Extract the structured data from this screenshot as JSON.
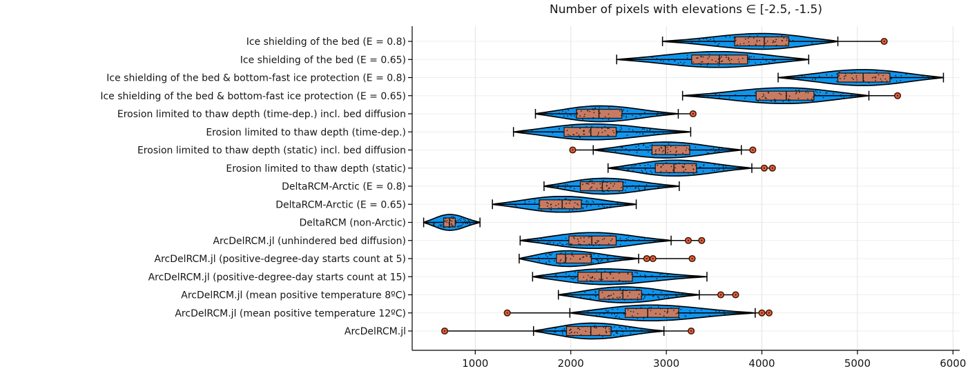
{
  "chart_data": {
    "type": "violin",
    "orientation": "horizontal",
    "title": "Number of pixels with elevations ∈ [-2.5, -1.5)",
    "xlabel": "",
    "ylabel": "",
    "xlim": [
      340,
      6070
    ],
    "xticks": [
      1000,
      2000,
      3000,
      4000,
      5000,
      6000
    ],
    "grid": true,
    "legend": "none",
    "colors": {
      "violin_fill": "#1095EE",
      "violin_stroke": "#000000",
      "box_fill": "#C97B62",
      "box_stroke": "#1a1a1a",
      "outlier_fill": "#E8603C",
      "outlier_stroke": "#3a1505",
      "dot_color": "#0a1a24",
      "grid_v": "#e2e2e2",
      "grid_h": "#ededed",
      "axis": "#000000",
      "text": "#151515"
    },
    "rows": [
      {
        "label": "Ice shielding of the bed (E = 0.8)",
        "whisker_low": 2960,
        "q1": 3715,
        "median": 4025,
        "q3": 4280,
        "whisker_high": 4795,
        "outliers": [
          5280
        ]
      },
      {
        "label": "Ice shielding of the bed (E = 0.65)",
        "whisker_low": 2480,
        "q1": 3265,
        "median": 3555,
        "q3": 3850,
        "whisker_high": 4490,
        "outliers": []
      },
      {
        "label": "Ice shielding of the bed & bottom-fast ice protection (E = 0.8)",
        "whisker_low": 4170,
        "q1": 4795,
        "median": 5060,
        "q3": 5340,
        "whisker_high": 5900,
        "outliers": []
      },
      {
        "label": "Ice shielding of the bed & bottom-fast ice protection (E = 0.65)",
        "whisker_low": 3170,
        "q1": 3940,
        "median": 4255,
        "q3": 4545,
        "whisker_high": 5120,
        "outliers": [
          5420
        ]
      },
      {
        "label": "Erosion limited to thaw depth (time-dep.) incl. bed diffusion",
        "whisker_low": 1630,
        "q1": 2060,
        "median": 2295,
        "q3": 2535,
        "whisker_high": 3125,
        "outliers": [
          3280
        ]
      },
      {
        "label": "Erosion limited to thaw depth (time-dep.)",
        "whisker_low": 1400,
        "q1": 1930,
        "median": 2210,
        "q3": 2475,
        "whisker_high": 3255,
        "outliers": []
      },
      {
        "label": "Erosion limited to thaw depth (static) incl. bed diffusion",
        "whisker_low": 2235,
        "q1": 2850,
        "median": 2990,
        "q3": 3245,
        "whisker_high": 3785,
        "outliers": [
          2020,
          3905
        ]
      },
      {
        "label": "Erosion limited to thaw depth (static)",
        "whisker_low": 2390,
        "q1": 2885,
        "median": 3080,
        "q3": 3315,
        "whisker_high": 3895,
        "outliers": [
          4025,
          4110
        ]
      },
      {
        "label": "DeltaRCM-Arctic (E = 0.8)",
        "whisker_low": 1720,
        "q1": 2100,
        "median": 2330,
        "q3": 2545,
        "whisker_high": 3135,
        "outliers": []
      },
      {
        "label": "DeltaRCM-Arctic (E = 0.65)",
        "whisker_low": 1180,
        "q1": 1670,
        "median": 1910,
        "q3": 2110,
        "whisker_high": 2685,
        "outliers": []
      },
      {
        "label": "DeltaRCM (non-Arctic)",
        "whisker_low": 460,
        "q1": 670,
        "median": 730,
        "q3": 790,
        "whisker_high": 1050,
        "outliers": []
      },
      {
        "label": "ArcDelRCM.jl (unhindered bed diffusion)",
        "whisker_low": 1470,
        "q1": 1980,
        "median": 2220,
        "q3": 2475,
        "whisker_high": 3050,
        "outliers": [
          3230,
          3370
        ]
      },
      {
        "label": "ArcDelRCM.jl (positive-degree-day starts count at 5)",
        "whisker_low": 1460,
        "q1": 1850,
        "median": 1945,
        "q3": 2215,
        "whisker_high": 2710,
        "outliers": [
          2795,
          2860,
          3270
        ]
      },
      {
        "label": "ArcDelRCM.jl (positive-degree-day starts count at 15)",
        "whisker_low": 1600,
        "q1": 2075,
        "median": 2320,
        "q3": 2645,
        "whisker_high": 3425,
        "outliers": []
      },
      {
        "label": "ArcDelRCM.jl (mean positive temperature 8ºC)",
        "whisker_low": 1870,
        "q1": 2295,
        "median": 2545,
        "q3": 2740,
        "whisker_high": 3345,
        "outliers": [
          3570,
          3725
        ]
      },
      {
        "label": "ArcDelRCM.jl (mean positive temperature 12ºC)",
        "whisker_low": 1990,
        "q1": 2570,
        "median": 2805,
        "q3": 3130,
        "whisker_high": 3930,
        "outliers": [
          1335,
          4000,
          4075
        ]
      },
      {
        "label": "ArcDelRCM.jl",
        "whisker_low": 1610,
        "q1": 1955,
        "median": 2210,
        "q3": 2420,
        "whisker_high": 2975,
        "outliers": [
          680,
          3260
        ]
      }
    ]
  }
}
